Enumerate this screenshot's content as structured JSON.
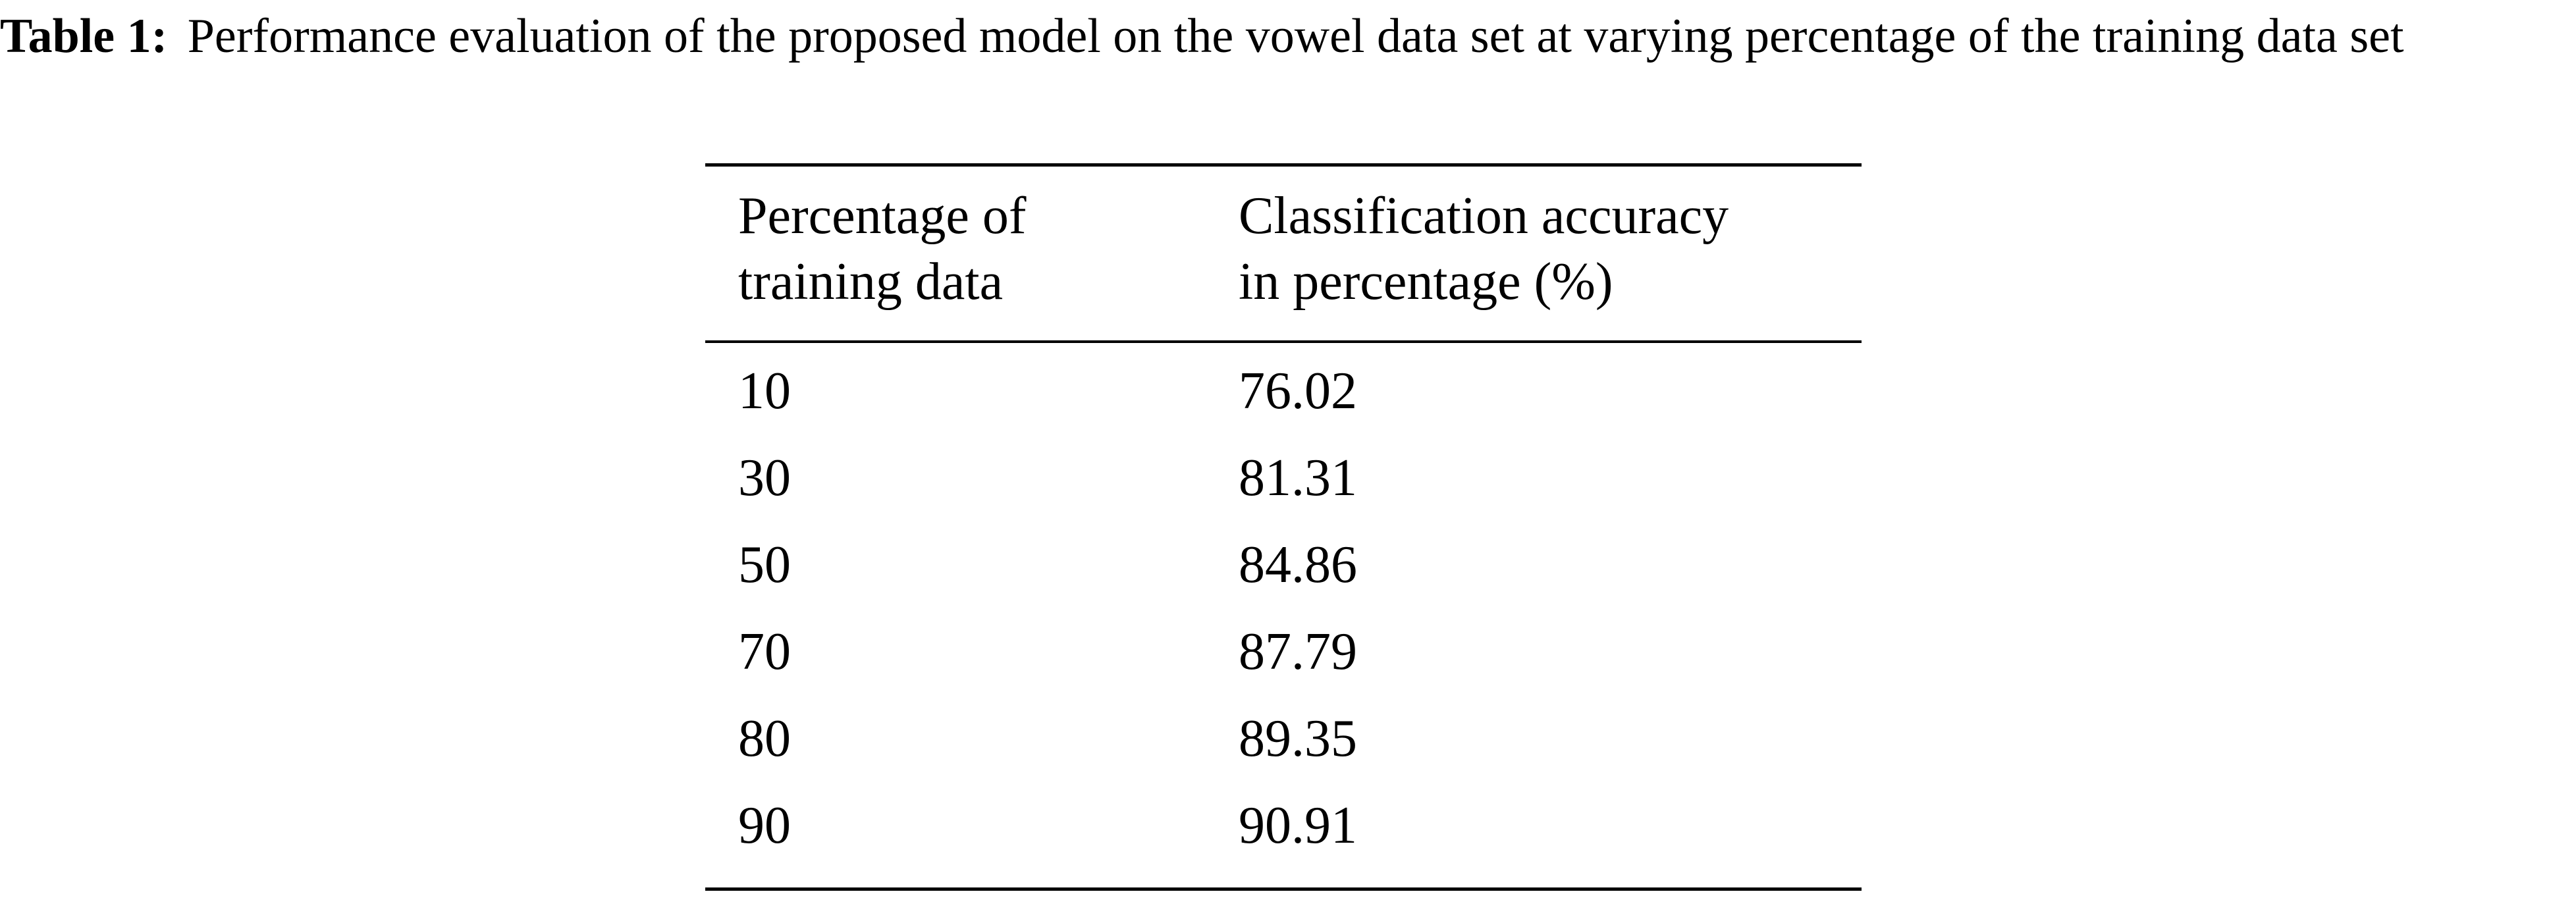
{
  "caption": {
    "label": "Table 1:",
    "text": "Performance evaluation of the proposed model on the vowel data set at varying percentage of the training data set"
  },
  "table": {
    "headers": [
      {
        "line1": "Percentage of",
        "line2": "training data"
      },
      {
        "line1": "Classification accuracy",
        "line2": "in percentage (%)"
      }
    ],
    "rows": [
      {
        "training": "10",
        "accuracy": "76.02"
      },
      {
        "training": "30",
        "accuracy": "81.31"
      },
      {
        "training": "50",
        "accuracy": "84.86"
      },
      {
        "training": "70",
        "accuracy": "87.79"
      },
      {
        "training": "80",
        "accuracy": "89.35"
      },
      {
        "training": "90",
        "accuracy": "90.91"
      }
    ]
  }
}
